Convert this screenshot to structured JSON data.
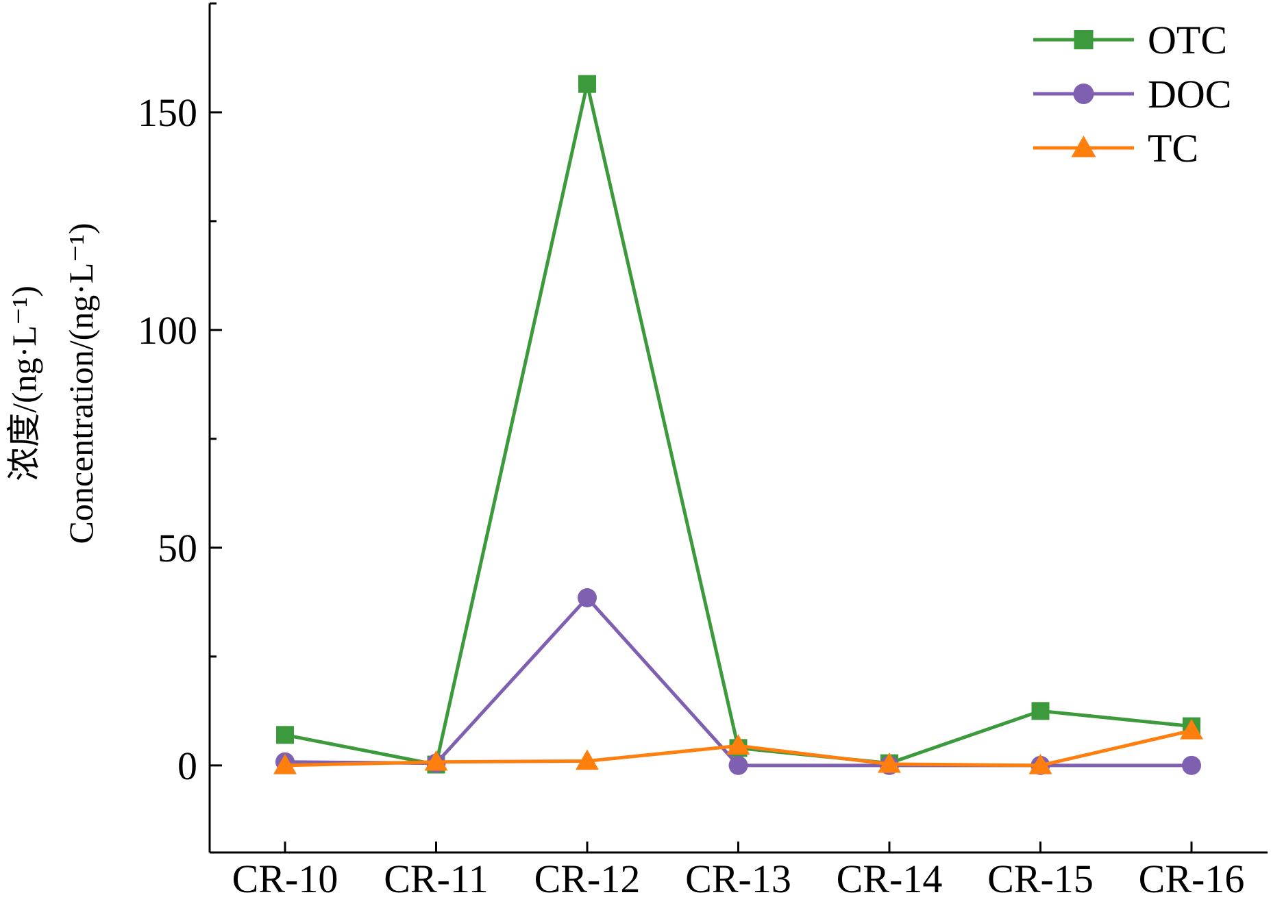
{
  "chart_data": {
    "type": "line",
    "title": "",
    "xlabel": "",
    "ylabel_line1": "浓度/(ng·L⁻¹)",
    "ylabel_line2": "Concentration/(ng·L⁻¹)",
    "categories": [
      "CR-10",
      "CR-11",
      "CR-12",
      "CR-13",
      "CR-14",
      "CR-15",
      "CR-16"
    ],
    "ylim": [
      -20,
      175
    ],
    "yticks": [
      0,
      50,
      100,
      150
    ],
    "grid": false,
    "legend_position": "top-right",
    "series": [
      {
        "name": "OTC",
        "color": "#3c9a3c",
        "marker": "square",
        "values": [
          7.0,
          0.2,
          156.5,
          4.0,
          0.5,
          12.5,
          9.0
        ]
      },
      {
        "name": "DOC",
        "color": "#7f5fb0",
        "marker": "circle",
        "values": [
          0.8,
          0.5,
          38.5,
          0.0,
          0.0,
          0.0,
          0.0
        ]
      },
      {
        "name": "TC",
        "color": "#ff7f0e",
        "marker": "triangle",
        "values": [
          0.0,
          0.8,
          1.0,
          4.5,
          0.3,
          0.0,
          8.0
        ]
      }
    ]
  }
}
